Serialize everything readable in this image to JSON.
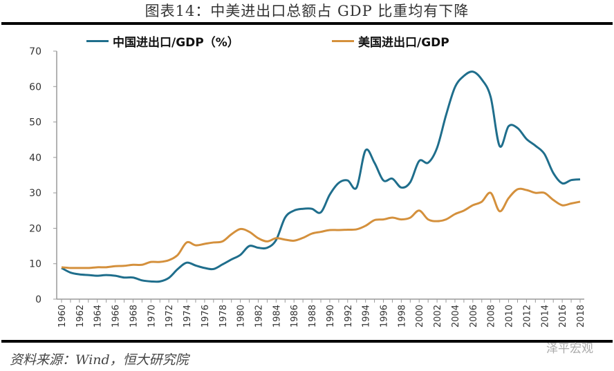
{
  "title": "图表14：中美进出口总额占 GDP 比重均有下降",
  "source": "资料来源：Wind，恒大研究院",
  "watermark": "泽平宏观",
  "chart_data": {
    "type": "line",
    "title": "图表14：中美进出口总额占 GDP 比重均有下降",
    "xlabel": "",
    "ylabel": "",
    "ylim": [
      0,
      70
    ],
    "yticks": [
      0,
      10,
      20,
      30,
      40,
      50,
      60,
      70
    ],
    "xlim": [
      1960,
      2018
    ],
    "xticks": [
      1960,
      1962,
      1964,
      1966,
      1968,
      1970,
      1972,
      1974,
      1976,
      1978,
      1980,
      1982,
      1984,
      1986,
      1988,
      1990,
      1992,
      1994,
      1996,
      1998,
      2000,
      2002,
      2004,
      2006,
      2008,
      2010,
      2012,
      2014,
      2016,
      2018
    ],
    "grid": false,
    "legend": "top",
    "x": [
      1960,
      1961,
      1962,
      1963,
      1964,
      1965,
      1966,
      1967,
      1968,
      1969,
      1970,
      1971,
      1972,
      1973,
      1974,
      1975,
      1976,
      1977,
      1978,
      1979,
      1980,
      1981,
      1982,
      1983,
      1984,
      1985,
      1986,
      1987,
      1988,
      1989,
      1990,
      1991,
      1992,
      1993,
      1994,
      1995,
      1996,
      1997,
      1998,
      1999,
      2000,
      2001,
      2002,
      2003,
      2004,
      2005,
      2006,
      2007,
      2008,
      2009,
      2010,
      2011,
      2012,
      2013,
      2014,
      2015,
      2016,
      2017,
      2018
    ],
    "series": [
      {
        "name": "中国进出口/GDP（%）",
        "color": "#1f6e8c",
        "values": [
          8.8,
          7.5,
          7.0,
          6.8,
          6.6,
          6.8,
          6.6,
          6.1,
          6.1,
          5.3,
          5.0,
          5.0,
          6.0,
          8.5,
          10.3,
          9.5,
          8.8,
          8.5,
          9.8,
          11.2,
          12.5,
          15.0,
          14.5,
          14.5,
          16.7,
          23.0,
          25.0,
          25.5,
          25.5,
          24.5,
          29.5,
          32.8,
          33.5,
          31.5,
          42.0,
          38.5,
          33.5,
          34.0,
          31.5,
          33.0,
          39.0,
          38.5,
          42.7,
          51.9,
          59.8,
          63.0,
          64.2,
          62.0,
          57.0,
          43.2,
          48.8,
          48.3,
          45.2,
          43.3,
          41.0,
          35.6,
          32.7,
          33.6,
          33.8
        ]
      },
      {
        "name": "美国进出口/GDP",
        "color": "#d4903c",
        "values": [
          9.0,
          8.8,
          8.8,
          8.8,
          9.0,
          9.0,
          9.3,
          9.4,
          9.7,
          9.7,
          10.5,
          10.5,
          11.0,
          12.5,
          16.0,
          15.2,
          15.6,
          16.0,
          16.3,
          18.3,
          19.8,
          19.0,
          17.2,
          16.3,
          17.2,
          16.8,
          16.5,
          17.3,
          18.5,
          19.0,
          19.5,
          19.5,
          19.6,
          19.7,
          20.7,
          22.3,
          22.5,
          23.0,
          22.5,
          23.0,
          25.0,
          22.5,
          22.0,
          22.5,
          24.0,
          25.0,
          26.5,
          27.5,
          30.0,
          24.8,
          28.5,
          31.0,
          30.8,
          30.0,
          30.0,
          28.0,
          26.5,
          27.0,
          27.5
        ]
      }
    ]
  }
}
